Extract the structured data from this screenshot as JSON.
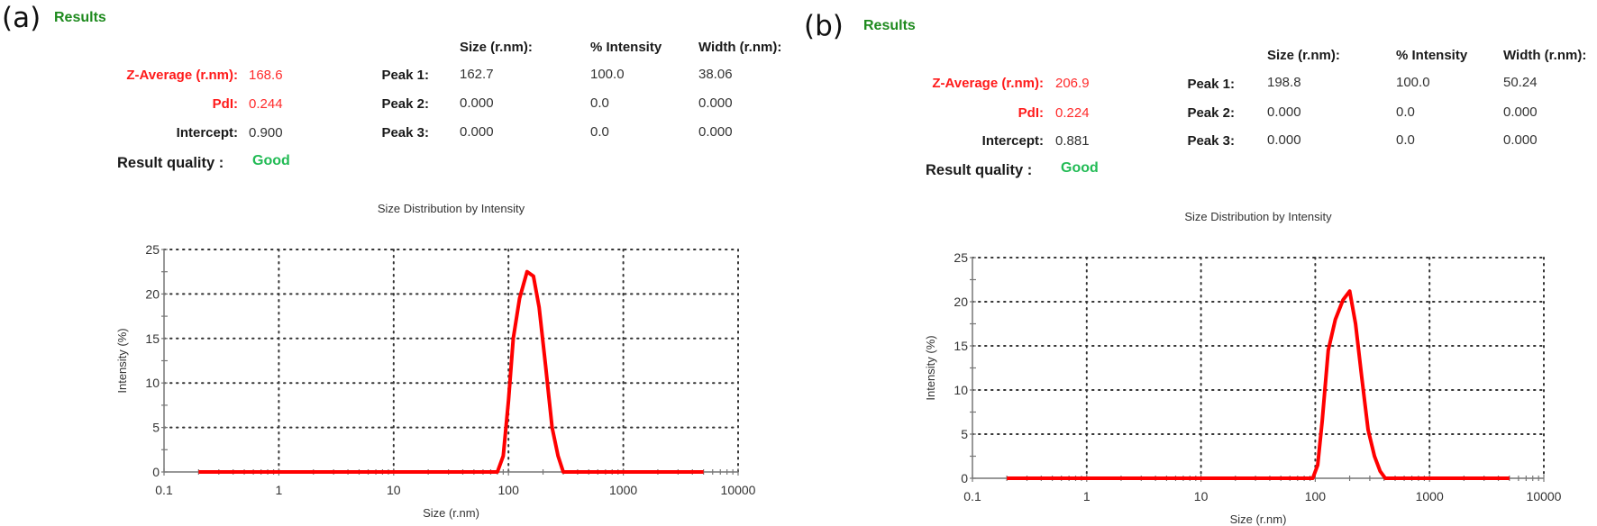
{
  "panels": [
    {
      "panel_label": "(a)",
      "results_title": "Results",
      "summary": {
        "z_average_label": "Z-Average (r.nm):",
        "z_average_value": "168.6",
        "pdi_label": "PdI:",
        "pdi_value": "0.244",
        "intercept_label": "Intercept:",
        "intercept_value": "0.900",
        "quality_label": "Result quality :",
        "quality_value": "Good"
      },
      "peaks_table": {
        "headers": [
          "Size (r.nm):",
          "% Intensity",
          "Width (r.nm):"
        ],
        "rows": [
          {
            "label": "Peak 1:",
            "size": "162.7",
            "intensity": "100.0",
            "width": "38.06"
          },
          {
            "label": "Peak 2:",
            "size": "0.000",
            "intensity": "0.0",
            "width": "0.000"
          },
          {
            "label": "Peak 3:",
            "size": "0.000",
            "intensity": "0.0",
            "width": "0.000"
          }
        ]
      }
    },
    {
      "panel_label": "(b)",
      "results_title": "Results",
      "summary": {
        "z_average_label": "Z-Average (r.nm):",
        "z_average_value": "206.9",
        "pdi_label": "PdI:",
        "pdi_value": "0.224",
        "intercept_label": "Intercept:",
        "intercept_value": "0.881",
        "quality_label": "Result quality :",
        "quality_value": "Good"
      },
      "peaks_table": {
        "headers": [
          "Size (r.nm):",
          "% Intensity",
          "Width (r.nm):"
        ],
        "rows": [
          {
            "label": "Peak 1:",
            "size": "198.8",
            "intensity": "100.0",
            "width": "50.24"
          },
          {
            "label": "Peak 2:",
            "size": "0.000",
            "intensity": "0.0",
            "width": "0.000"
          },
          {
            "label": "Peak 3:",
            "size": "0.000",
            "intensity": "0.0",
            "width": "0.000"
          }
        ]
      }
    }
  ],
  "colors": {
    "line": "#ff0000",
    "results_green": "#1e8a1e",
    "good_green": "#22bb55",
    "highlight_red": "#ff1a1a"
  },
  "chart_data": [
    {
      "type": "line",
      "title": "Size Distribution by Intensity",
      "xlabel": "Size (r.nm)",
      "ylabel": "Intensity (%)",
      "xscale": "log",
      "xlim": [
        0.1,
        10000
      ],
      "ylim": [
        0,
        25
      ],
      "xticks": [
        "0.1",
        "1",
        "10",
        "100",
        "1000",
        "10000"
      ],
      "yticks": [
        "0",
        "5",
        "10",
        "15",
        "20",
        "25"
      ],
      "grid": true,
      "series": [
        {
          "name": "Intensity",
          "x": [
            0.2,
            80,
            90,
            100,
            110,
            125,
            145,
            165,
            185,
            210,
            240,
            270,
            300,
            5000
          ],
          "y": [
            0,
            0,
            1.8,
            8,
            15,
            19.5,
            22.5,
            22.0,
            18.5,
            12,
            5,
            1.8,
            0,
            0
          ]
        }
      ]
    },
    {
      "type": "line",
      "title": "Size Distribution by Intensity",
      "xlabel": "Size (r.nm)",
      "ylabel": "Intensity (%)",
      "xscale": "log",
      "xlim": [
        0.1,
        10000
      ],
      "ylim": [
        0,
        25
      ],
      "xticks": [
        "0.1",
        "1",
        "10",
        "100",
        "1000",
        "10000"
      ],
      "yticks": [
        "0",
        "5",
        "10",
        "15",
        "20",
        "25"
      ],
      "grid": true,
      "series": [
        {
          "name": "Intensity",
          "x": [
            0.2,
            95,
            105,
            115,
            130,
            150,
            175,
            200,
            225,
            255,
            290,
            330,
            370,
            410,
            5000
          ],
          "y": [
            0,
            0,
            1.5,
            6.5,
            14.5,
            18,
            20.2,
            21.2,
            17.5,
            11.5,
            5.5,
            2.5,
            0.8,
            0,
            0
          ]
        }
      ]
    }
  ]
}
